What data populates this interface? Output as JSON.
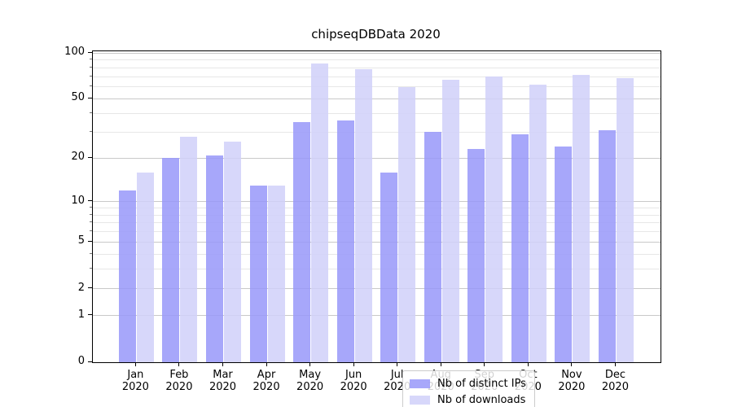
{
  "title": "chipseqDBData 2020",
  "chart_data": {
    "type": "bar",
    "title": "chipseqDBData 2020",
    "categories": [
      "Jan",
      "Feb",
      "Mar",
      "Apr",
      "May",
      "Jun",
      "Jul",
      "Aug",
      "Sep",
      "Oct",
      "Nov",
      "Dec"
    ],
    "category_year": "2020",
    "series": [
      {
        "name": "Nb of distinct IPs",
        "color": "#9898f9",
        "values": [
          12,
          20,
          21,
          13,
          35,
          36,
          16,
          30,
          23,
          29,
          24,
          31
        ]
      },
      {
        "name": "Nb of downloads",
        "color": "#d0d0f9",
        "values": [
          16,
          28,
          26,
          13,
          85,
          78,
          60,
          67,
          70,
          62,
          72,
          68
        ]
      }
    ],
    "xlabel": "",
    "ylabel": "",
    "yscale": "log1p",
    "ylim": [
      0,
      102
    ],
    "yticks_major": [
      0,
      1,
      2,
      5,
      10,
      20,
      50,
      100
    ],
    "yticks_minor": [
      3,
      4,
      6,
      7,
      8,
      9,
      30,
      40,
      60,
      70,
      80,
      90
    ],
    "grid": true,
    "legend_position": "lower-center",
    "colors": {
      "grid_major": "#c9c9c9",
      "grid_minor": "#e7e7e7",
      "spine": "#000000",
      "background": "#ffffff"
    }
  }
}
